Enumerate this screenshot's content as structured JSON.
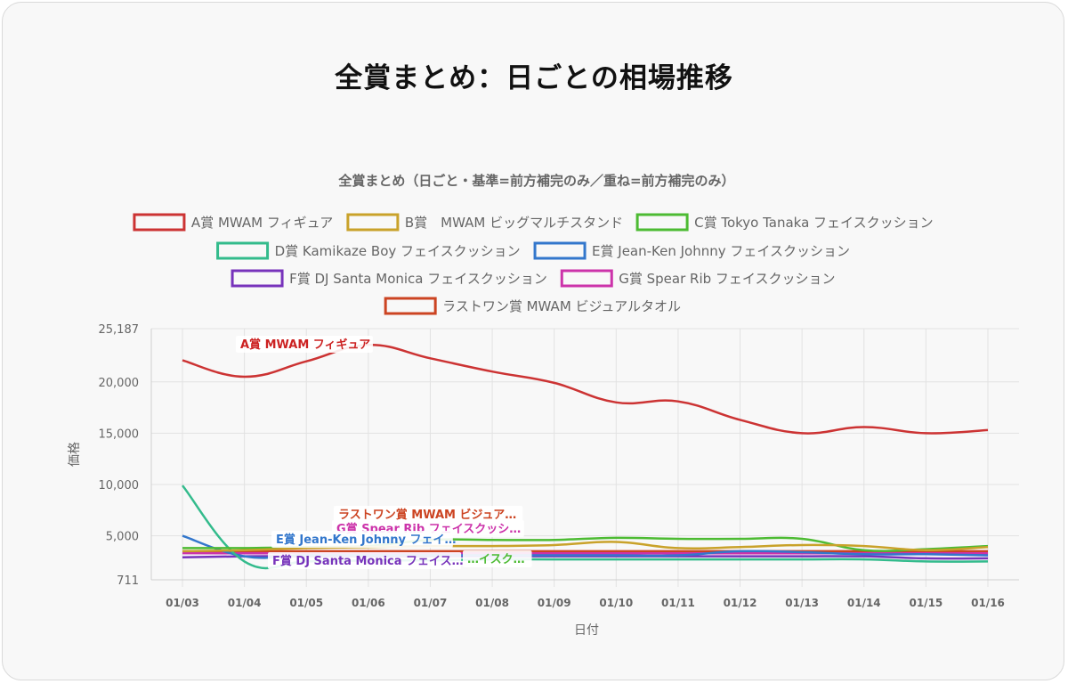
{
  "page_title": "全賞まとめ：日ごとの相場推移",
  "chart_data": {
    "type": "line",
    "title": "全賞まとめ（日ごと・基準=前方補完のみ／重ね=前方補完のみ）",
    "xlabel": "日付",
    "ylabel": "価格",
    "ylim": [
      711,
      25187
    ],
    "ytick_labels": [
      "25,187",
      "20,000",
      "15,000",
      "10,000",
      "5,000",
      "711"
    ],
    "grid": true,
    "legend_position": "top",
    "categories": [
      "01/03",
      "01/04",
      "01/05",
      "01/06",
      "01/07",
      "01/08",
      "01/09",
      "01/10",
      "01/11",
      "01/12",
      "01/13",
      "01/14",
      "01/15",
      "01/16"
    ],
    "series": [
      {
        "name": "A賞 MWAM フィギュア",
        "color": "#cc3333",
        "values": [
          22100,
          20500,
          22000,
          23600,
          22300,
          21000,
          19900,
          18000,
          18100,
          16300,
          15000,
          15600,
          15000,
          15300
        ]
      },
      {
        "name": "B賞　MWAM ビッグマルチスタンド",
        "color": "#c9a22a",
        "values": [
          3500,
          3600,
          3800,
          3900,
          4000,
          4000,
          4100,
          4400,
          3800,
          3900,
          4100,
          4000,
          3600,
          3900
        ]
      },
      {
        "name": "C賞 Tokyo Tanaka フェイスクッション",
        "color": "#4dbb33",
        "values": [
          3800,
          3800,
          3900,
          4000,
          4600,
          4600,
          4600,
          4800,
          4700,
          4700,
          4700,
          3600,
          3700,
          4000
        ]
      },
      {
        "name": "D賞 Kamikaze Boy フェイスクッション",
        "color": "#33bb8c",
        "values": [
          9900,
          2500,
          2500,
          2600,
          2600,
          2700,
          2700,
          2700,
          2700,
          2700,
          2700,
          2700,
          2500,
          2500
        ]
      },
      {
        "name": "E賞 Jean-Ken Johnny フェイスクッション",
        "color": "#3377cc",
        "values": [
          5000,
          3000,
          3100,
          3100,
          3100,
          3100,
          3100,
          3100,
          3100,
          3500,
          3400,
          3200,
          3200,
          3100
        ]
      },
      {
        "name": "F賞 DJ Santa Monica フェイスクッション",
        "color": "#7733bb",
        "values": [
          2900,
          3000,
          3000,
          3000,
          3000,
          3000,
          3000,
          3000,
          3000,
          3000,
          3000,
          3000,
          2800,
          2800
        ]
      },
      {
        "name": "G賞 Spear Rib フェイスクッション",
        "color": "#cc33aa",
        "values": [
          3300,
          3300,
          3300,
          3300,
          3300,
          3300,
          3300,
          3300,
          3300,
          3300,
          3300,
          3300,
          3300,
          3300
        ]
      },
      {
        "name": "ラストワン賞 MWAM ビジュアルタオル",
        "color": "#cc4422",
        "values": [
          3500,
          3500,
          3500,
          3500,
          3500,
          3500,
          3500,
          3500,
          3500,
          3500,
          3500,
          3500,
          3500,
          3500
        ]
      }
    ],
    "annotations": [
      {
        "text": "A賞 MWAM フィギュア",
        "color": "#cc2222"
      },
      {
        "text": "ラストワン賞 MWAM ビジュア…",
        "color": "#cc4422"
      },
      {
        "text": "G賞 Spear Rib フェイスクッシ…",
        "color": "#cc33aa"
      },
      {
        "text": "E賞 Jean-Ken Johnny フェイ…",
        "color": "#3377cc"
      },
      {
        "text": "F賞 DJ Santa Monica フェイス…",
        "color": "#7733bb"
      },
      {
        "text": "…イスク…",
        "color": "#4dbb33"
      }
    ]
  }
}
